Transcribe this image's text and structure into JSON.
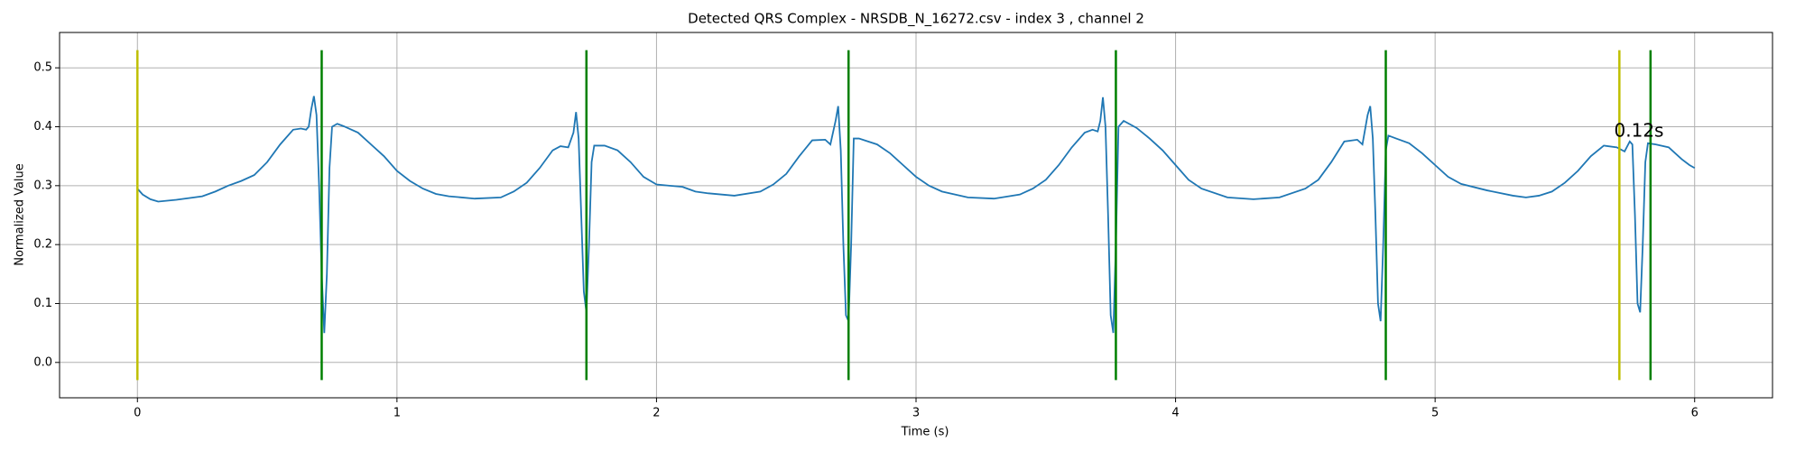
{
  "chart_data": {
    "type": "line",
    "title": "Detected QRS Complex - NRSDB_N_16272.csv - index 3 , channel 2",
    "xlabel": "Time (s)",
    "ylabel": "Normalized Value",
    "annotation": "0.12s",
    "annotation_color": "#0000ff",
    "xlim": [
      -0.3,
      6.3
    ],
    "ylim": [
      -0.06,
      0.56
    ],
    "xticks": [
      0,
      1,
      2,
      3,
      4,
      5,
      6
    ],
    "yticks": [
      {
        "value": 0,
        "label": "0.0"
      },
      0.1,
      0.2,
      0.3,
      0.4,
      0.5
    ],
    "grid": true,
    "vline_span": [
      -0.03,
      0.53
    ],
    "vlines": [
      {
        "color": "#bfbf00",
        "x": [
          0,
          5.71
        ]
      },
      {
        "color": "#008000",
        "x": [
          0.71,
          1.73,
          2.74,
          3.77,
          4.81,
          5.83
        ]
      }
    ],
    "series": [
      {
        "color": "#1f77b4",
        "x": [
          0,
          0.02,
          0.05,
          0.08,
          0.15,
          0.25,
          0.3,
          0.35,
          0.4,
          0.45,
          0.5,
          0.55,
          0.6,
          0.63,
          0.65,
          0.66,
          0.67,
          0.68,
          0.69,
          0.7,
          0.71,
          0.72,
          0.73,
          0.74,
          0.75,
          0.77,
          0.8,
          0.85,
          0.9,
          0.95,
          1.0,
          1.05,
          1.1,
          1.15,
          1.2,
          1.3,
          1.4,
          1.45,
          1.5,
          1.55,
          1.6,
          1.63,
          1.66,
          1.68,
          1.69,
          1.7,
          1.71,
          1.72,
          1.73,
          1.74,
          1.75,
          1.76,
          1.8,
          1.85,
          1.9,
          1.95,
          2.0,
          2.05,
          2.1,
          2.15,
          2.2,
          2.3,
          2.4,
          2.45,
          2.5,
          2.55,
          2.6,
          2.65,
          2.67,
          2.69,
          2.7,
          2.71,
          2.72,
          2.73,
          2.74,
          2.75,
          2.76,
          2.78,
          2.85,
          2.9,
          2.95,
          3.0,
          3.05,
          3.1,
          3.2,
          3.3,
          3.4,
          3.45,
          3.5,
          3.55,
          3.6,
          3.65,
          3.68,
          3.7,
          3.71,
          3.72,
          3.73,
          3.74,
          3.75,
          3.76,
          3.77,
          3.78,
          3.8,
          3.85,
          3.9,
          3.95,
          4.0,
          4.05,
          4.1,
          4.2,
          4.3,
          4.4,
          4.5,
          4.55,
          4.6,
          4.65,
          4.7,
          4.72,
          4.74,
          4.75,
          4.76,
          4.77,
          4.78,
          4.79,
          4.8,
          4.81,
          4.82,
          4.85,
          4.9,
          4.95,
          5.0,
          5.05,
          5.1,
          5.2,
          5.3,
          5.35,
          5.4,
          5.45,
          5.5,
          5.55,
          5.6,
          5.65,
          5.7,
          5.73,
          5.75,
          5.76,
          5.77,
          5.78,
          5.79,
          5.8,
          5.81,
          5.82,
          5.85,
          5.9,
          5.95,
          5.98,
          6.0
        ],
        "values": [
          0.295,
          0.285,
          0.277,
          0.273,
          0.276,
          0.282,
          0.29,
          0.3,
          0.308,
          0.318,
          0.34,
          0.37,
          0.395,
          0.397,
          0.395,
          0.4,
          0.43,
          0.452,
          0.42,
          0.3,
          0.15,
          0.05,
          0.15,
          0.33,
          0.4,
          0.405,
          0.4,
          0.39,
          0.37,
          0.35,
          0.325,
          0.308,
          0.295,
          0.286,
          0.282,
          0.278,
          0.28,
          0.29,
          0.305,
          0.33,
          0.36,
          0.367,
          0.365,
          0.39,
          0.425,
          0.38,
          0.25,
          0.12,
          0.085,
          0.2,
          0.34,
          0.368,
          0.368,
          0.36,
          0.34,
          0.315,
          0.302,
          0.3,
          0.298,
          0.29,
          0.287,
          0.283,
          0.29,
          0.302,
          0.32,
          0.35,
          0.377,
          0.378,
          0.37,
          0.41,
          0.435,
          0.36,
          0.2,
          0.08,
          0.07,
          0.2,
          0.38,
          0.38,
          0.37,
          0.355,
          0.335,
          0.315,
          0.3,
          0.29,
          0.28,
          0.278,
          0.285,
          0.295,
          0.31,
          0.335,
          0.365,
          0.39,
          0.395,
          0.392,
          0.41,
          0.45,
          0.4,
          0.25,
          0.08,
          0.05,
          0.2,
          0.4,
          0.41,
          0.398,
          0.38,
          0.36,
          0.335,
          0.31,
          0.295,
          0.28,
          0.277,
          0.28,
          0.295,
          0.31,
          0.34,
          0.375,
          0.378,
          0.37,
          0.42,
          0.435,
          0.38,
          0.25,
          0.1,
          0.07,
          0.2,
          0.36,
          0.385,
          0.38,
          0.372,
          0.355,
          0.335,
          0.315,
          0.303,
          0.292,
          0.283,
          0.28,
          0.283,
          0.29,
          0.305,
          0.325,
          0.35,
          0.368,
          0.365,
          0.358,
          0.375,
          0.37,
          0.25,
          0.1,
          0.085,
          0.2,
          0.34,
          0.372,
          0.37,
          0.365,
          0.345,
          0.335,
          0.33
        ]
      }
    ]
  }
}
